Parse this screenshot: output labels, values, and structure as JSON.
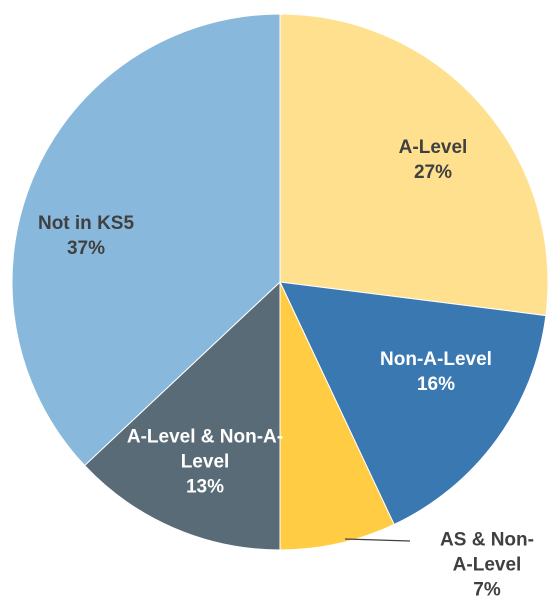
{
  "chart_data": {
    "type": "pie",
    "categories": [
      "A-Level",
      "Non-A-Level",
      "AS & Non-A-Level",
      "A-Level & Non-A-Level",
      "Not in KS5"
    ],
    "values": [
      27,
      16,
      7,
      13,
      37
    ],
    "value_labels": [
      "27%",
      "16%",
      "7%",
      "13%",
      "37%"
    ],
    "colors": [
      "#FFE08F",
      "#3A78B2",
      "#FFCC44",
      "#5A6B78",
      "#88B8DC"
    ]
  }
}
